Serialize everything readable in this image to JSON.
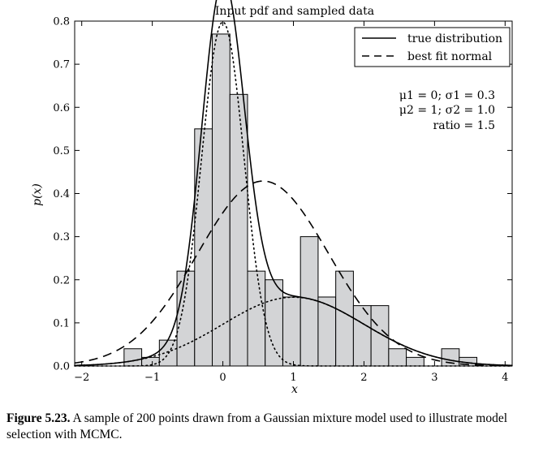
{
  "chart_data": {
    "type": "histogram+line",
    "title": "Input pdf and sampled data",
    "xlabel": "x",
    "ylabel": "p(x)",
    "xlim": [
      -2.1,
      4.1
    ],
    "ylim": [
      0,
      0.8
    ],
    "xticks": [
      -2,
      -1,
      0,
      1,
      2,
      3,
      4
    ],
    "yticks": [
      0.0,
      0.1,
      0.2,
      0.3,
      0.4,
      0.5,
      0.6,
      0.7,
      0.8
    ],
    "ytick_labels": [
      "0.0",
      "0.1",
      "0.2",
      "0.3",
      "0.4",
      "0.5",
      "0.6",
      "0.7",
      "0.8"
    ],
    "xtick_labels": [
      "−2",
      "−1",
      "0",
      "1",
      "2",
      "3",
      "4"
    ],
    "histogram": {
      "edges": [
        -1.4,
        -1.15,
        -0.9,
        -0.65,
        -0.4,
        -0.15,
        0.1,
        0.35,
        0.6,
        0.85,
        1.1,
        1.35,
        1.6,
        1.85,
        2.1,
        2.35,
        2.6,
        2.85,
        3.1,
        3.35,
        3.6
      ],
      "values": [
        0.04,
        0.02,
        0.06,
        0.22,
        0.55,
        0.77,
        0.63,
        0.22,
        0.2,
        0.16,
        0.3,
        0.16,
        0.22,
        0.14,
        0.14,
        0.04,
        0.02,
        0.0,
        0.04,
        0.02
      ],
      "fill": "#d3d4d6"
    },
    "components": {
      "mu1": 0,
      "sigma1": 0.3,
      "mu2": 1,
      "sigma2": 1.0,
      "ratio": 1.5
    },
    "best_fit_normal": {
      "mu": 0.57,
      "sigma": 0.93
    },
    "legend": {
      "placement": "top-right",
      "entries": [
        {
          "label": "true distribution",
          "style": "solid"
        },
        {
          "label": "best fit normal",
          "style": "dashed"
        }
      ]
    },
    "annotation_lines": [
      "μ1 = 0;  σ1 = 0.3",
      "μ2 = 1;  σ2 = 1.0",
      "ratio = 1.5"
    ]
  },
  "caption": {
    "label": "Figure 5.23.",
    "text": " A sample of 200 points drawn from a Gaussian mixture model used to illustrate model selection with MCMC."
  }
}
